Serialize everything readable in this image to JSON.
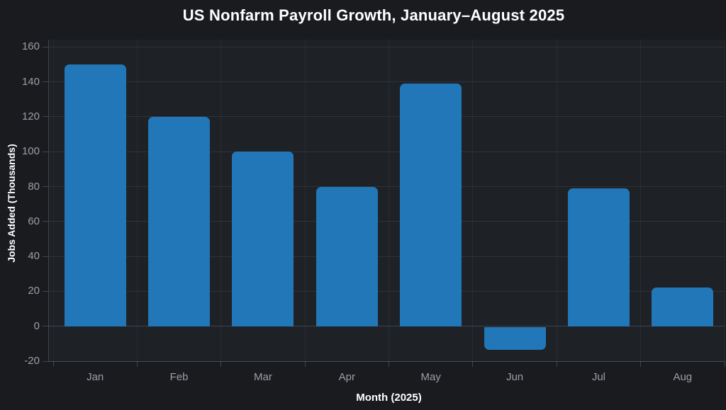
{
  "chart_data": {
    "type": "bar",
    "title": "US Nonfarm Payroll Growth, January–August 2025",
    "xlabel": "Month (2025)",
    "ylabel": "Jobs Added (Thousands)",
    "categories": [
      "Jan",
      "Feb",
      "Mar",
      "Apr",
      "May",
      "Jun",
      "Jul",
      "Aug"
    ],
    "values": [
      150,
      120,
      100,
      80,
      139,
      -13,
      79,
      22
    ],
    "yticks": [
      160,
      140,
      120,
      100,
      80,
      60,
      40,
      20,
      0,
      -20
    ],
    "ylim": [
      -20,
      164
    ],
    "grid": true,
    "legend": false,
    "colors": {
      "bar": "#2277b8",
      "background": "#191b1f",
      "plot_background": "#1e2126",
      "tick_label": "#9b9fa6",
      "text": "#ffffff",
      "gridline": "#8c929c"
    }
  }
}
